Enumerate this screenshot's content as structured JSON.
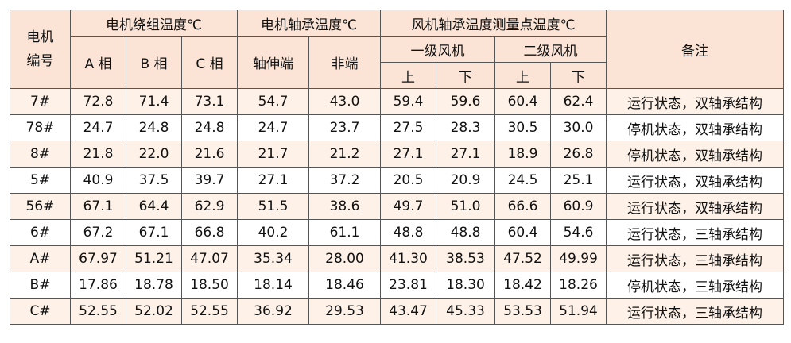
{
  "table": {
    "header": {
      "motor_id": "电机编号",
      "winding": "电机绕组温度℃",
      "phase_a": "A 相",
      "phase_b": "B 相",
      "phase_c": "C 相",
      "motor_bearing": "电机轴承温度℃",
      "shaft_end": "轴伸端",
      "non_end": "非端",
      "fan_bearing": "风机轴承温度测量点温度℃",
      "fan1": "一级风机",
      "fan2": "二级风机",
      "up1": "上",
      "down1": "下",
      "up2": "上",
      "down2": "下",
      "remarks": "备注"
    },
    "rows": [
      [
        "7#",
        "72.8",
        "71.4",
        "73.1",
        "54.7",
        "43.0",
        "59.4",
        "59.6",
        "60.4",
        "62.4",
        "运行状态，双轴承结构"
      ],
      [
        "78#",
        "24.7",
        "24.8",
        "24.8",
        "24.7",
        "23.7",
        "27.5",
        "28.3",
        "30.5",
        "30.0",
        "停机状态，双轴承结构"
      ],
      [
        "8#",
        "21.8",
        "22.0",
        "21.6",
        "21.7",
        "21.2",
        "27.1",
        "27.1",
        "18.9",
        "26.8",
        "停机状态，双轴承结构"
      ],
      [
        "5#",
        "40.9",
        "37.5",
        "39.7",
        "27.1",
        "37.2",
        "20.5",
        "20.9",
        "24.5",
        "25.1",
        "运行状态，双轴承结构"
      ],
      [
        "56#",
        "67.1",
        "64.4",
        "62.9",
        "51.5",
        "38.6",
        "49.7",
        "51.0",
        "66.6",
        "60.9",
        "运行状态，双轴承结构"
      ],
      [
        "6#",
        "67.2",
        "67.1",
        "66.8",
        "40.2",
        "61.1",
        "48.8",
        "48.8",
        "60.4",
        "54.6",
        "运行状态，三轴承结构"
      ],
      [
        "A#",
        "67.97",
        "51.21",
        "47.07",
        "35.34",
        "28.00",
        "41.30",
        "38.53",
        "47.52",
        "49.99",
        "运行状态，三轴承结构"
      ],
      [
        "B#",
        "17.86",
        "18.78",
        "18.50",
        "18.14",
        "18.46",
        "23.81",
        "18.30",
        "18.42",
        "18.26",
        "停机状态，三轴承结构"
      ],
      [
        "C#",
        "52.55",
        "52.02",
        "52.55",
        "36.92",
        "29.53",
        "43.47",
        "45.33",
        "53.53",
        "51.94",
        "运行状态，三轴承结构"
      ]
    ]
  }
}
